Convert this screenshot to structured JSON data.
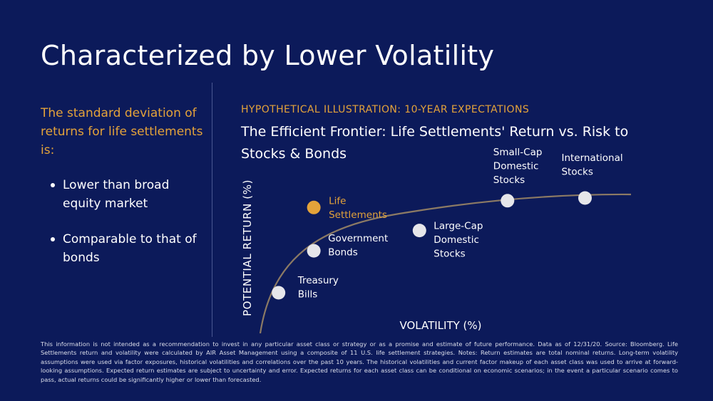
{
  "slide": {
    "title": "Characterized by Lower Volatility",
    "lead": "The standard deviation of returns for life settlements is:",
    "bullets": [
      "Lower than broad equity market",
      "Comparable to that of bonds"
    ],
    "footnote": "This information is not intended as a recommendation to invest in any particular asset class or strategy or as a promise and estimate of future performance. Data as of 12/31/20. Source: Bloomberg. Life Settlements return and volatility were calculated by AIR Asset Management using a composite of 11 U.S. life settlement strategies. Notes: Return estimates are total nominal returns. Long-term volatility assumptions were used via factor exposures, historical volatilities and correlations over the past 10 years. The historical volatilities and current factor makeup of each asset class was used to arrive at forward-looking assumptions. Expected return estimates are subject to uncertainty and error. Expected returns for each asset class can be conditional on economic scenarios; in the event a particular scenario comes to pass, actual returns could be significantly higher or lower than forecasted."
  },
  "chart_data": {
    "type": "scatter",
    "subtitle": "HYPOTHETICAL ILLUSTRATION: 10-YEAR EXPECTATIONS",
    "title": "The Efficient Frontier: Life Settlements' Return vs. Risk to Stocks & Bonds",
    "xlabel": "VOLATILITY (%)",
    "ylabel": "POTENTIAL RETURN (%)",
    "xlim": [
      0,
      100
    ],
    "ylim": [
      0,
      100
    ],
    "grid": false,
    "axis_ticks": false,
    "frontier_curve": true,
    "points": [
      {
        "label": [
          "Treasury",
          "Bills"
        ],
        "x": 5,
        "y": 30,
        "highlight": false
      },
      {
        "label": [
          "Government",
          "Bonds"
        ],
        "x": 15,
        "y": 61,
        "highlight": false
      },
      {
        "label": [
          "Life",
          "Settlements"
        ],
        "x": 15,
        "y": 93,
        "highlight": true
      },
      {
        "label": [
          "Large-Cap",
          "Domestic",
          "Stocks"
        ],
        "x": 45,
        "y": 76,
        "highlight": false
      },
      {
        "label": [
          "Small-Cap",
          "Domestic",
          "Stocks"
        ],
        "x": 70,
        "y": 98,
        "highlight": false
      },
      {
        "label": [
          "International",
          "Stocks"
        ],
        "x": 92,
        "y": 100,
        "highlight": false
      }
    ],
    "colors": {
      "background": "#0c1a5a",
      "accent": "#e4a33a",
      "point": "#e6e6ea",
      "curve": "#8c7a64",
      "text": "#ffffff"
    }
  }
}
